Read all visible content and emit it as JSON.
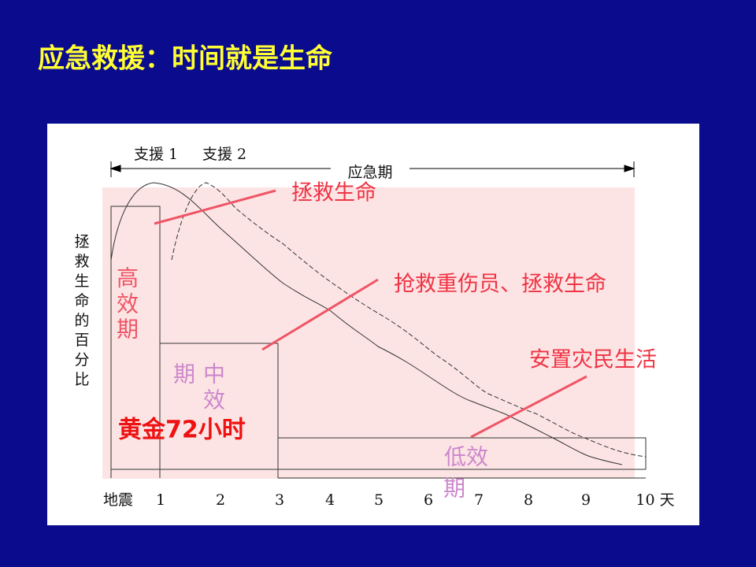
{
  "title": "应急救援：时间就是生命",
  "diagram": {
    "support_labels": [
      "支援 1",
      "支援 2"
    ],
    "emergency_period": "应急期",
    "y_axis_label": [
      "拯",
      "救",
      "生",
      "命",
      "的",
      "百",
      "分",
      "比"
    ],
    "x_axis_labels": [
      "地震",
      "1",
      "2",
      "3",
      "4",
      "5",
      "6",
      "7",
      "8",
      "9",
      "10 天"
    ],
    "high_efficiency": [
      "高",
      "效",
      "期"
    ],
    "medium_efficiency": [
      "期",
      "中",
      "效"
    ],
    "low_efficiency": [
      "低效",
      "期"
    ],
    "golden_hours": "黄金72小时",
    "callouts": [
      "拯救生命",
      "抢救重伤员、拯救生命",
      "安置灾民生活"
    ]
  }
}
